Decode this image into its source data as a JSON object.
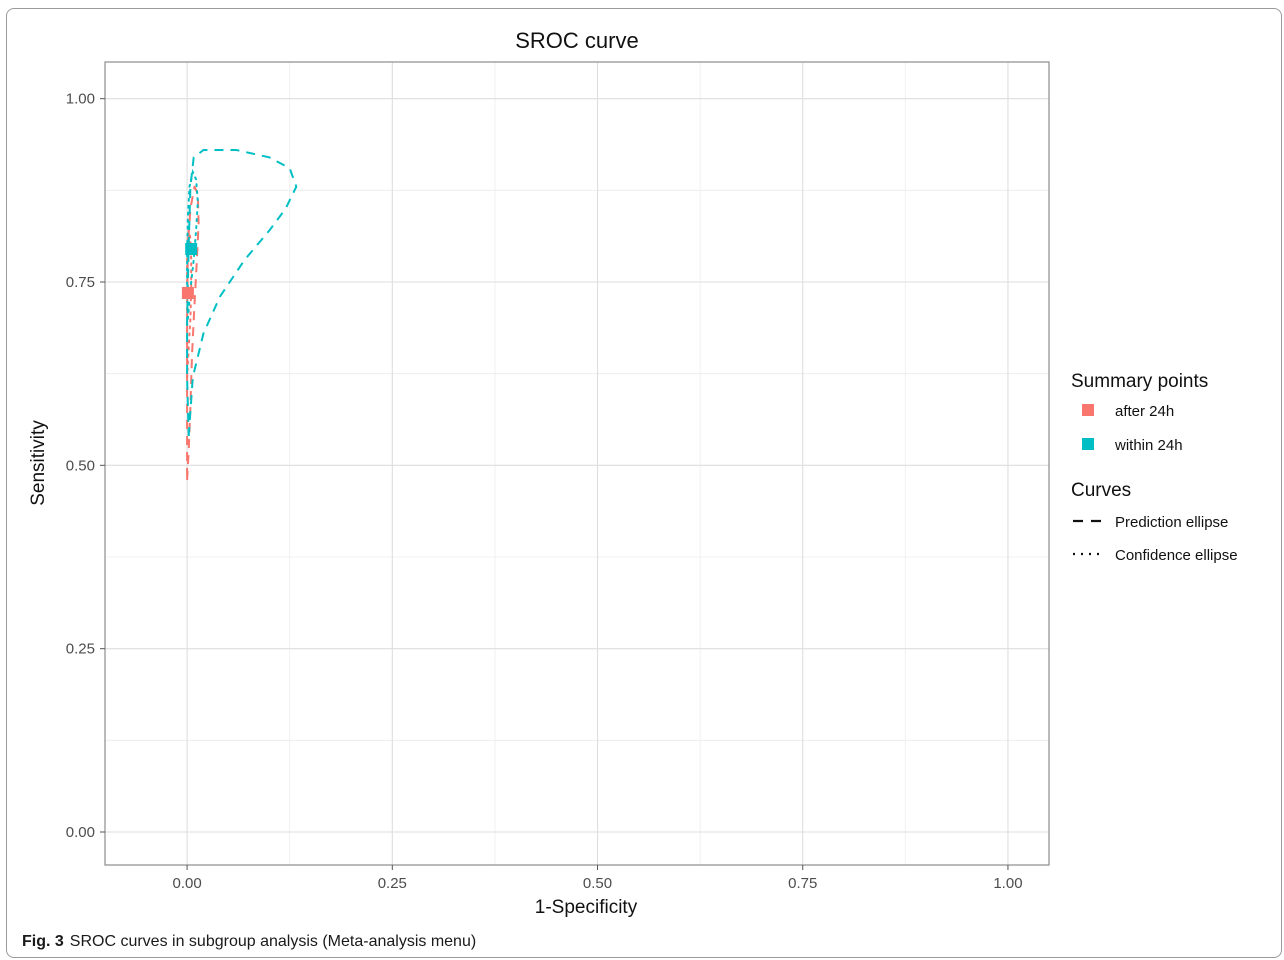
{
  "caption": {
    "label": "Fig. 3",
    "text": "SROC curves in subgroup analysis (Meta-analysis menu)"
  },
  "chart_data": {
    "type": "scatter",
    "title": "SROC  curve",
    "xlabel": "1-Specificity",
    "ylabel": "Sensitivity",
    "xlim": [
      -0.1,
      1.05
    ],
    "ylim": [
      -0.045,
      1.05
    ],
    "x_ticks": [
      0,
      0.25,
      0.5,
      0.75,
      1
    ],
    "x_tick_labels": [
      "0.00",
      "0.25",
      "0.50",
      "0.75",
      "1.00"
    ],
    "y_ticks": [
      0,
      0.25,
      0.5,
      0.75,
      1
    ],
    "y_tick_labels": [
      "0.00",
      "0.25",
      "0.50",
      "0.75",
      "1.00"
    ],
    "grid": true,
    "legend_position": "right",
    "legend": {
      "points_title": "Summary    points",
      "curves_title": "Curves",
      "curve_labels": [
        "Prediction    ellipse",
        "Confidence    ellipse"
      ]
    },
    "series": [
      {
        "name": "after   24h",
        "color": "#F8766D",
        "summary_point": [
          0.001,
          0.735
        ],
        "prediction_ellipse": [
          [
            0.0,
            0.48
          ],
          [
            0.002,
            0.52
          ],
          [
            0.004,
            0.58
          ],
          [
            0.006,
            0.65
          ],
          [
            0.009,
            0.72
          ],
          [
            0.012,
            0.78
          ],
          [
            0.014,
            0.83
          ],
          [
            0.013,
            0.87
          ],
          [
            0.009,
            0.88
          ],
          [
            0.004,
            0.85
          ],
          [
            0.001,
            0.8
          ],
          [
            0.0,
            0.7
          ],
          [
            0.0,
            0.6
          ],
          [
            0.0,
            0.52
          ],
          [
            0.0,
            0.48
          ]
        ],
        "confidence_ellipse": [
          [
            0.0,
            0.62
          ],
          [
            0.002,
            0.66
          ],
          [
            0.004,
            0.7
          ],
          [
            0.005,
            0.74
          ],
          [
            0.005,
            0.78
          ],
          [
            0.004,
            0.81
          ],
          [
            0.002,
            0.82
          ],
          [
            0.0,
            0.8
          ],
          [
            0.0,
            0.75
          ],
          [
            0.0,
            0.69
          ],
          [
            0.0,
            0.62
          ]
        ]
      },
      {
        "name": "within   24h",
        "color": "#00BFC4",
        "summary_point": [
          0.005,
          0.795
        ],
        "prediction_ellipse": [
          [
            0.002,
            0.54
          ],
          [
            0.007,
            0.62
          ],
          [
            0.02,
            0.68
          ],
          [
            0.04,
            0.73
          ],
          [
            0.07,
            0.78
          ],
          [
            0.1,
            0.82
          ],
          [
            0.12,
            0.85
          ],
          [
            0.133,
            0.88
          ],
          [
            0.125,
            0.905
          ],
          [
            0.1,
            0.92
          ],
          [
            0.06,
            0.93
          ],
          [
            0.02,
            0.93
          ],
          [
            0.008,
            0.92
          ],
          [
            0.004,
            0.88
          ],
          [
            0.002,
            0.8
          ],
          [
            0.0,
            0.7
          ],
          [
            0.0,
            0.62
          ],
          [
            0.002,
            0.54
          ]
        ],
        "confidence_ellipse": [
          [
            0.001,
            0.7
          ],
          [
            0.004,
            0.74
          ],
          [
            0.008,
            0.78
          ],
          [
            0.011,
            0.82
          ],
          [
            0.013,
            0.86
          ],
          [
            0.011,
            0.89
          ],
          [
            0.007,
            0.9
          ],
          [
            0.003,
            0.88
          ],
          [
            0.001,
            0.84
          ],
          [
            0.0,
            0.79
          ],
          [
            0.0,
            0.74
          ],
          [
            0.001,
            0.7
          ]
        ]
      }
    ]
  }
}
